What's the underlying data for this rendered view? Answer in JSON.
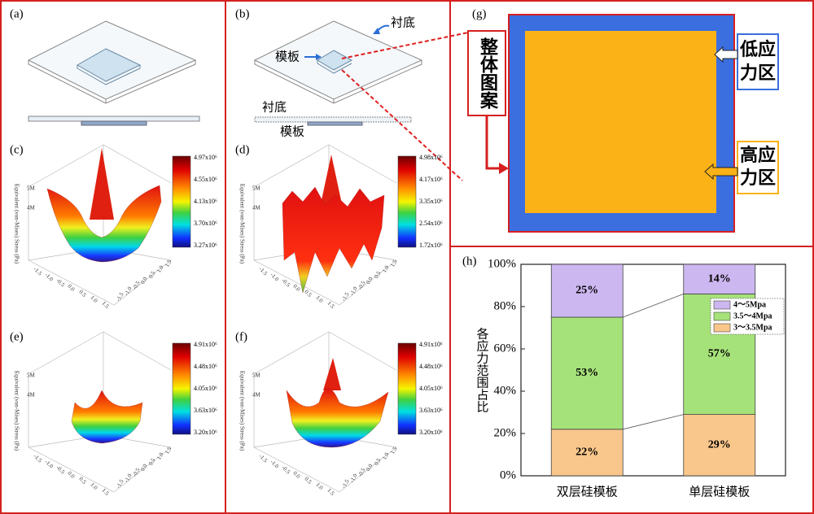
{
  "panels": {
    "a": {
      "label": "(a)"
    },
    "b": {
      "label": "(b)",
      "substrate": "衬底",
      "template": "模板",
      "substrate_side": "衬底",
      "template_side": "模板"
    },
    "c": {
      "label": "(c)",
      "colorbar": [
        "4.97x10⁶",
        "4.55x10⁶",
        "4.13x10⁶",
        "3.70x10⁶",
        "3.27x10⁶"
      ]
    },
    "d": {
      "label": "(d)",
      "colorbar": [
        "4.98x10⁶",
        "4.17x10⁶",
        "3.35x10⁶",
        "2.54x10⁶",
        "1.72x10⁶"
      ]
    },
    "e": {
      "label": "(e)",
      "colorbar": [
        "4.91x10⁶",
        "4.48x10⁶",
        "4.05x10⁶",
        "3.63x10⁶",
        "3.20x10⁶"
      ]
    },
    "f": {
      "label": "(f)",
      "colorbar": [
        "4.91x10⁶",
        "4.48x10⁶",
        "4.05x10⁶",
        "3.63x10⁶",
        "3.20x10⁶"
      ]
    },
    "g": {
      "label": "(g)",
      "whole": "整体图案",
      "low_lines": [
        "低应",
        "力区"
      ],
      "high_lines": [
        "高应",
        "力区"
      ]
    },
    "h": {
      "label": "(h)"
    }
  },
  "surface_axis": {
    "title": "Equivalent (von-Mises) Stress (Pa)",
    "zticks": [
      "5M",
      "4M"
    ],
    "xyticks": [
      "-1.5",
      "-1.0",
      "-0.5",
      "0.0",
      "0.5",
      "1.0",
      "1.5"
    ]
  },
  "chart_data": {
    "type": "stacked_bar",
    "ylabel": "各应力范围占比",
    "categories": [
      "双层硅模板",
      "单层硅模板"
    ],
    "series": [
      {
        "name": "3～3.5Mpa",
        "color": "#f9c68b",
        "values": [
          22,
          29
        ],
        "value_labels": [
          "22%",
          "29%"
        ]
      },
      {
        "name": "3.5～4Mpa",
        "color": "#a6e27a",
        "values": [
          53,
          57
        ],
        "value_labels": [
          "53%",
          "57%"
        ]
      },
      {
        "name": "4～5Mpa",
        "color": "#cdb7f0",
        "values": [
          25,
          14
        ],
        "value_labels": [
          "25%",
          "14%"
        ]
      }
    ],
    "ylim": [
      0,
      100
    ],
    "yticks": [
      {
        "value": 0,
        "label": "0%"
      },
      {
        "value": 20,
        "label": "20%"
      },
      {
        "value": 40,
        "label": "40%"
      },
      {
        "value": 60,
        "label": "60%"
      },
      {
        "value": 80,
        "label": "80%"
      },
      {
        "value": 100,
        "label": "100%"
      }
    ],
    "legend": "upper right"
  }
}
